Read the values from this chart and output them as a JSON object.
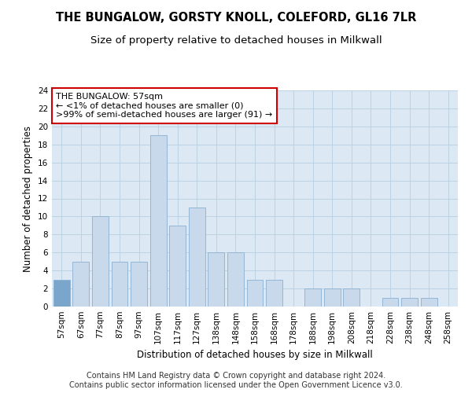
{
  "title": "THE BUNGALOW, GORSTY KNOLL, COLEFORD, GL16 7LR",
  "subtitle": "Size of property relative to detached houses in Milkwall",
  "xlabel": "Distribution of detached houses by size in Milkwall",
  "ylabel": "Number of detached properties",
  "categories": [
    "57sqm",
    "67sqm",
    "77sqm",
    "87sqm",
    "97sqm",
    "107sqm",
    "117sqm",
    "127sqm",
    "138sqm",
    "148sqm",
    "158sqm",
    "168sqm",
    "178sqm",
    "188sqm",
    "198sqm",
    "208sqm",
    "218sqm",
    "228sqm",
    "238sqm",
    "248sqm",
    "258sqm"
  ],
  "values": [
    3,
    5,
    10,
    5,
    5,
    19,
    9,
    11,
    6,
    6,
    3,
    3,
    0,
    2,
    2,
    2,
    0,
    1,
    1,
    1,
    0
  ],
  "bar_color": "#c9d9ec",
  "bar_edgecolor": "#8ab0d0",
  "annotation_line1": "THE BUNGALOW: 57sqm",
  "annotation_line2": "← <1% of detached houses are smaller (0)",
  "annotation_line3": ">99% of semi-detached houses are larger (91) →",
  "annotation_box_facecolor": "#ffffff",
  "annotation_box_edgecolor": "#cc0000",
  "highlight_bar_index": 0,
  "highlight_bar_color": "#7aa6cc",
  "ylim": [
    0,
    24
  ],
  "yticks": [
    0,
    2,
    4,
    6,
    8,
    10,
    12,
    14,
    16,
    18,
    20,
    22,
    24
  ],
  "grid_color": "#b8cfe0",
  "background_color": "#dce9f5",
  "footer_text": "Contains HM Land Registry data © Crown copyright and database right 2024.\nContains public sector information licensed under the Open Government Licence v3.0.",
  "title_fontsize": 10.5,
  "subtitle_fontsize": 9.5,
  "axis_label_fontsize": 8.5,
  "tick_fontsize": 7.5,
  "annotation_fontsize": 8,
  "footer_fontsize": 7
}
